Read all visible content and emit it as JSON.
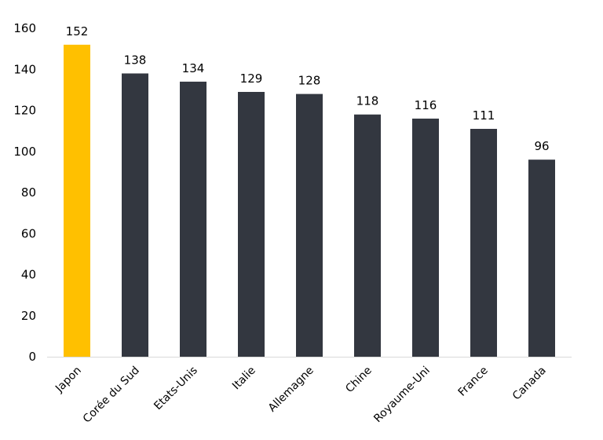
{
  "chart_data": {
    "type": "bar",
    "title": "",
    "xlabel": "",
    "ylabel": "",
    "categories": [
      "Japon",
      "Corée du Sud",
      "Etats-Unis",
      "Italie",
      "Allemagne",
      "Chine",
      "Royaume-Uni",
      "France",
      "Canada"
    ],
    "values": [
      152,
      138,
      134,
      129,
      128,
      118,
      116,
      111,
      96
    ],
    "ylim": [
      0,
      160
    ],
    "yticks": [
      0,
      20,
      40,
      60,
      80,
      100,
      120,
      140,
      160
    ],
    "grid": false,
    "legend": "none",
    "data_labels": true,
    "x_tick_rotation": -45,
    "colors": {
      "highlight": "#FFC000",
      "default": "#333740",
      "axis": "#D9D9D9"
    },
    "highlight_categories": [
      "Japon"
    ]
  }
}
